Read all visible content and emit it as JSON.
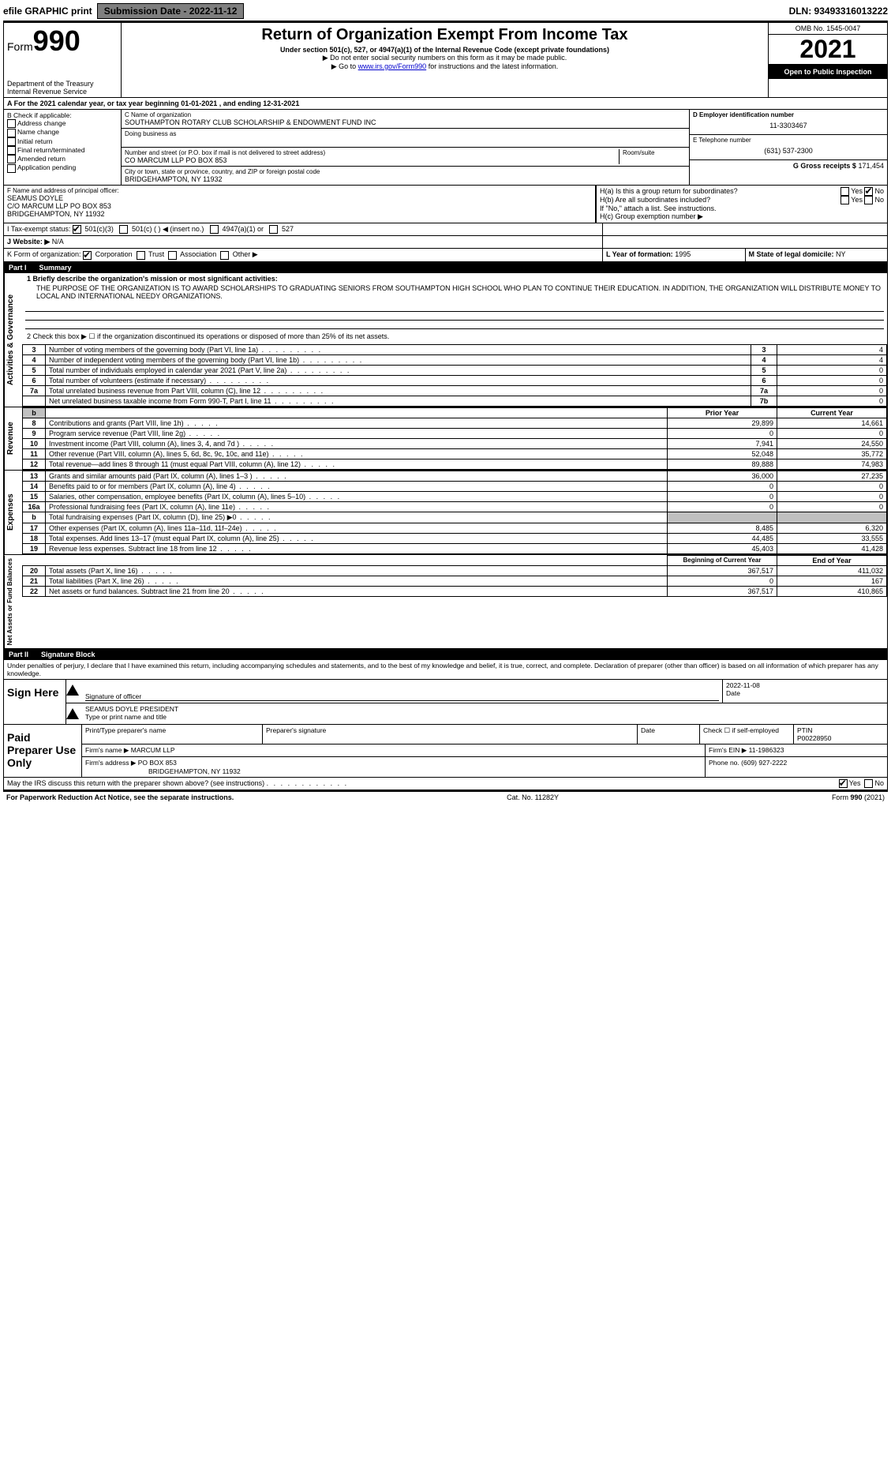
{
  "topbar": {
    "efile": "efile GRAPHIC print",
    "submission": "Submission Date - 2022-11-12",
    "dln": "DLN: 93493316013222"
  },
  "header": {
    "form_prefix": "Form",
    "form_number": "990",
    "dept": "Department of the Treasury",
    "irs": "Internal Revenue Service",
    "title": "Return of Organization Exempt From Income Tax",
    "subtitle": "Under section 501(c), 527, or 4947(a)(1) of the Internal Revenue Code (except private foundations)",
    "note1": "▶ Do not enter social security numbers on this form as it may be made public.",
    "note2_pre": "▶ Go to ",
    "note2_link": "www.irs.gov/Form990",
    "note2_post": " for instructions and the latest information.",
    "omb": "OMB No. 1545-0047",
    "year": "2021",
    "open": "Open to Public Inspection"
  },
  "sectionA": "A For the 2021 calendar year, or tax year beginning 01-01-2021    , and ending 12-31-2021",
  "colB": {
    "label": "B Check if applicable:",
    "items": [
      "Address change",
      "Name change",
      "Initial return",
      "Final return/terminated",
      "Amended return",
      "Application pending"
    ]
  },
  "colC": {
    "name_label": "C Name of organization",
    "name": "SOUTHAMPTON ROTARY CLUB SCHOLARSHIP & ENDOWMENT FUND INC",
    "dba_label": "Doing business as",
    "addr_label": "Number and street (or P.O. box if mail is not delivered to street address)",
    "room": "Room/suite",
    "addr": "CO MARCUM LLP PO BOX 853",
    "city_label": "City or town, state or province, country, and ZIP or foreign postal code",
    "city": "BRIDGEHAMPTON, NY  11932"
  },
  "colDE": {
    "d_label": "D Employer identification number",
    "d_val": "11-3303467",
    "e_label": "E Telephone number",
    "e_val": "(631) 537-2300",
    "g_label": "G Gross receipts $",
    "g_val": "171,454"
  },
  "fh": {
    "f_label": "F  Name and address of principal officer:",
    "f_name": "SEAMUS DOYLE",
    "f_addr1": "C/O MARCUM LLP PO BOX 853",
    "f_addr2": "BRIDGEHAMPTON, NY  11932",
    "ha": "H(a)  Is this a group return for subordinates?",
    "hb": "H(b)  Are all subordinates included?",
    "hb_note": "If \"No,\" attach a list. See instructions.",
    "hc": "H(c)  Group exemption number ▶",
    "yes": "Yes",
    "no": "No"
  },
  "i": {
    "label": "I   Tax-exempt status:",
    "opts": [
      "501(c)(3)",
      "501(c) (   ) ◀ (insert no.)",
      "4947(a)(1) or",
      "527"
    ]
  },
  "j": {
    "label": "J   Website: ▶",
    "val": "N/A"
  },
  "k": {
    "label": "K Form of organization:",
    "opts": [
      "Corporation",
      "Trust",
      "Association",
      "Other ▶"
    ],
    "l_label": "L Year of formation:",
    "l_val": "1995",
    "m_label": "M State of legal domicile:",
    "m_val": "NY"
  },
  "part1": {
    "label": "Part I",
    "title": "Summary"
  },
  "summary": {
    "q1": "1  Briefly describe the organization's mission or most significant activities:",
    "mission": "THE PURPOSE OF THE ORGANIZATION IS TO AWARD SCHOLARSHIPS TO GRADUATING SENIORS FROM SOUTHAMPTON HIGH SCHOOL WHO PLAN TO CONTINUE THEIR EDUCATION. IN ADDITION, THE ORGANIZATION WILL DISTRIBUTE MONEY TO LOCAL AND INTERNATIONAL NEEDY ORGANIZATIONS.",
    "q2": "2   Check this box ▶ ☐ if the organization discontinued its operations or disposed of more than 25% of its net assets.",
    "lines_gov": [
      {
        "n": "3",
        "t": "Number of voting members of the governing body (Part VI, line 1a)",
        "box": "3",
        "v": "4"
      },
      {
        "n": "4",
        "t": "Number of independent voting members of the governing body (Part VI, line 1b)",
        "box": "4",
        "v": "4"
      },
      {
        "n": "5",
        "t": "Total number of individuals employed in calendar year 2021 (Part V, line 2a)",
        "box": "5",
        "v": "0"
      },
      {
        "n": "6",
        "t": "Total number of volunteers (estimate if necessary)",
        "box": "6",
        "v": "0"
      },
      {
        "n": "7a",
        "t": "Total unrelated business revenue from Part VIII, column (C), line 12",
        "box": "7a",
        "v": "0"
      },
      {
        "n": "",
        "t": "Net unrelated business taxable income from Form 990-T, Part I, line 11",
        "box": "7b",
        "v": "0"
      }
    ],
    "col_headers": {
      "prior": "Prior Year",
      "current": "Current Year"
    },
    "lines_rev": [
      {
        "n": "8",
        "t": "Contributions and grants (Part VIII, line 1h)",
        "p": "29,899",
        "c": "14,661"
      },
      {
        "n": "9",
        "t": "Program service revenue (Part VIII, line 2g)",
        "p": "0",
        "c": "0"
      },
      {
        "n": "10",
        "t": "Investment income (Part VIII, column (A), lines 3, 4, and 7d )",
        "p": "7,941",
        "c": "24,550"
      },
      {
        "n": "11",
        "t": "Other revenue (Part VIII, column (A), lines 5, 6d, 8c, 9c, 10c, and 11e)",
        "p": "52,048",
        "c": "35,772"
      },
      {
        "n": "12",
        "t": "Total revenue—add lines 8 through 11 (must equal Part VIII, column (A), line 12)",
        "p": "89,888",
        "c": "74,983"
      }
    ],
    "lines_exp": [
      {
        "n": "13",
        "t": "Grants and similar amounts paid (Part IX, column (A), lines 1–3 )",
        "p": "36,000",
        "c": "27,235"
      },
      {
        "n": "14",
        "t": "Benefits paid to or for members (Part IX, column (A), line 4)",
        "p": "0",
        "c": "0"
      },
      {
        "n": "15",
        "t": "Salaries, other compensation, employee benefits (Part IX, column (A), lines 5–10)",
        "p": "0",
        "c": "0"
      },
      {
        "n": "16a",
        "t": "Professional fundraising fees (Part IX, column (A), line 11e)",
        "p": "0",
        "c": "0"
      },
      {
        "n": "b",
        "t": "Total fundraising expenses (Part IX, column (D), line 25) ▶0",
        "p": "",
        "c": "",
        "grey": true
      },
      {
        "n": "17",
        "t": "Other expenses (Part IX, column (A), lines 11a–11d, 11f–24e)",
        "p": "8,485",
        "c": "6,320"
      },
      {
        "n": "18",
        "t": "Total expenses. Add lines 13–17 (must equal Part IX, column (A), line 25)",
        "p": "44,485",
        "c": "33,555"
      },
      {
        "n": "19",
        "t": "Revenue less expenses. Subtract line 18 from line 12",
        "p": "45,403",
        "c": "41,428"
      }
    ],
    "col_headers2": {
      "prior": "Beginning of Current Year",
      "current": "End of Year"
    },
    "lines_net": [
      {
        "n": "20",
        "t": "Total assets (Part X, line 16)",
        "p": "367,517",
        "c": "411,032"
      },
      {
        "n": "21",
        "t": "Total liabilities (Part X, line 26)",
        "p": "0",
        "c": "167"
      },
      {
        "n": "22",
        "t": "Net assets or fund balances. Subtract line 21 from line 20",
        "p": "367,517",
        "c": "410,865"
      }
    ]
  },
  "part2": {
    "label": "Part II",
    "title": "Signature Block"
  },
  "sig": {
    "declaration": "Under penalties of perjury, I declare that I have examined this return, including accompanying schedules and statements, and to the best of my knowledge and belief, it is true, correct, and complete. Declaration of preparer (other than officer) is based on all information of which preparer has any knowledge.",
    "sign_label": "Sign Here",
    "sig_officer": "Signature of officer",
    "date_label": "Date",
    "date": "2022-11-08",
    "name": "SEAMUS DOYLE  PRESIDENT",
    "name_label": "Type or print name and title"
  },
  "paid": {
    "label": "Paid Preparer Use Only",
    "h1": "Print/Type preparer's name",
    "h2": "Preparer's signature",
    "h3": "Date",
    "h4": "Check ☐ if self-employed",
    "ptin_label": "PTIN",
    "ptin": "P00228950",
    "firm_name_l": "Firm's name    ▶",
    "firm_name": "MARCUM LLP",
    "firm_ein_l": "Firm's EIN ▶",
    "firm_ein": "11-1986323",
    "firm_addr_l": "Firm's address ▶",
    "firm_addr": "PO BOX 853",
    "firm_city": "BRIDGEHAMPTON, NY  11932",
    "phone_l": "Phone no.",
    "phone": "(609) 927-2222"
  },
  "discuss": {
    "q": "May the IRS discuss this return with the preparer shown above? (see instructions)",
    "yes": "Yes",
    "no": "No"
  },
  "footer": {
    "left": "For Paperwork Reduction Act Notice, see the separate instructions.",
    "mid": "Cat. No. 11282Y",
    "right": "Form 990 (2021)"
  },
  "vert": {
    "gov": "Activities & Governance",
    "rev": "Revenue",
    "exp": "Expenses",
    "net": "Net Assets or Fund Balances"
  }
}
